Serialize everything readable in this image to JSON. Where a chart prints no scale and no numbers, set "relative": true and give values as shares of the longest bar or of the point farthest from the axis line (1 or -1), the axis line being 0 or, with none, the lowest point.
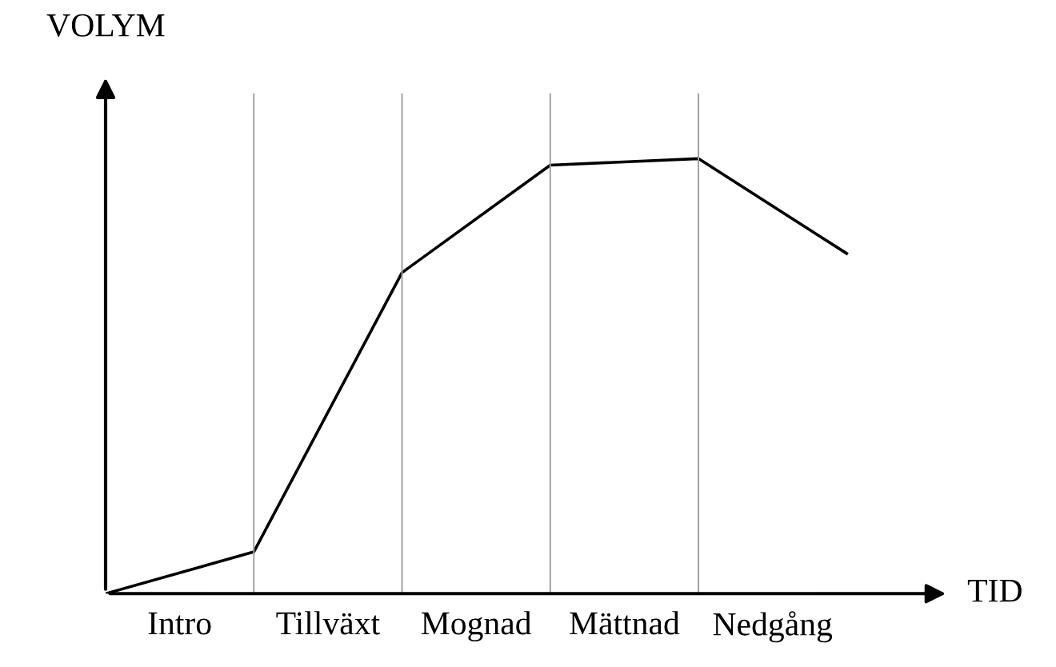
{
  "chart_data": {
    "type": "line",
    "xlabel": "TID",
    "ylabel": "VOLYM",
    "relative": true,
    "categories": [
      null,
      null,
      null,
      null,
      null,
      null
    ],
    "series": [
      {
        "color": "#000000",
        "values": [
          0,
          0.096,
          0.738,
          0.985,
          1,
          0.782
        ]
      }
    ],
    "annotations": [
      "Intro",
      "Tillväxt",
      "Mognad",
      "Mättnad",
      "Nedgång"
    ],
    "grid": "x",
    "legend": false,
    "marker": "none",
    "line_style": "solid"
  }
}
